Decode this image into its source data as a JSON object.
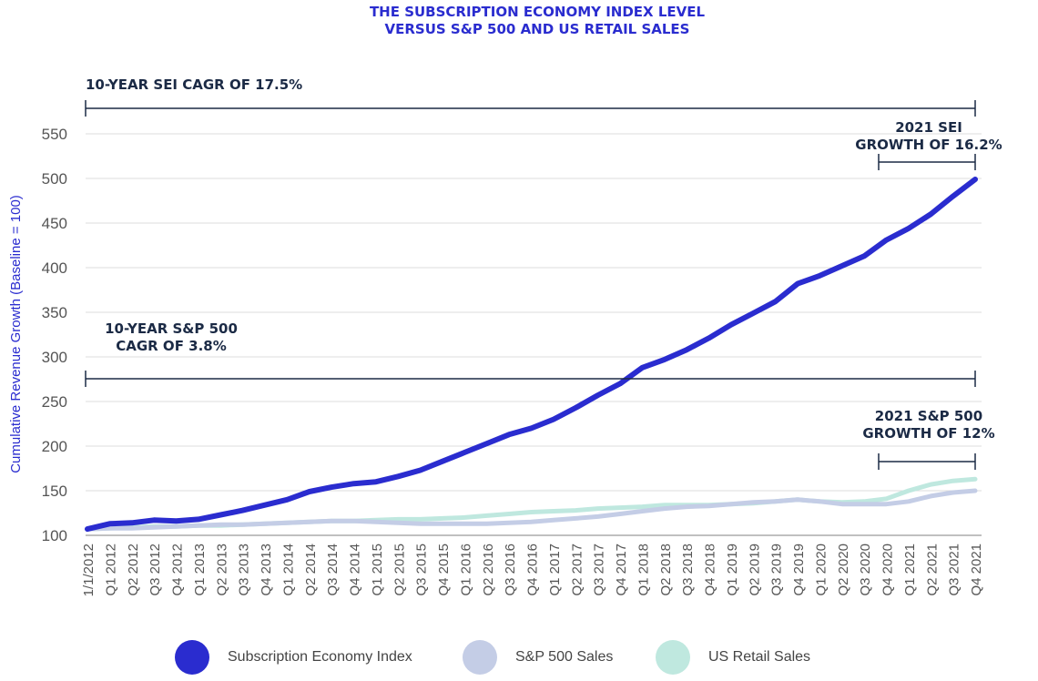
{
  "chart_data": {
    "type": "line",
    "title": "THE SUBSCRIPTION ECONOMY INDEX LEVEL",
    "subtitle": "VERSUS S&P 500 AND US RETAIL SALES",
    "xlabel": "",
    "ylabel": "Cumulative Revenue Growth (Baseline = 100)",
    "ylim": [
      100,
      550
    ],
    "yticks": [
      100,
      150,
      200,
      250,
      300,
      350,
      400,
      450,
      500,
      550
    ],
    "grid": true,
    "legend_position": "bottom",
    "categories": [
      "1/1/2012",
      "Q1 2012",
      "Q2 2012",
      "Q3 2012",
      "Q4 2012",
      "Q1 2013",
      "Q2 2013",
      "Q3 2013",
      "Q4 2013",
      "Q1 2014",
      "Q2 2014",
      "Q3 2014",
      "Q4 2014",
      "Q1 2015",
      "Q2 2015",
      "Q3 2015",
      "Q4 2015",
      "Q1 2016",
      "Q2 2016",
      "Q3 2016",
      "Q4 2016",
      "Q1 2017",
      "Q2 2017",
      "Q3 2017",
      "Q4 2017",
      "Q1 2018",
      "Q2 2018",
      "Q3 2018",
      "Q4 2018",
      "Q1 2019",
      "Q2 2019",
      "Q3 2019",
      "Q4 2019",
      "Q1 2020",
      "Q2 2020",
      "Q3 2020",
      "Q4 2020",
      "Q1 2021",
      "Q2 2021",
      "Q3 2021",
      "Q4 2021"
    ],
    "series": [
      {
        "name": "Subscription Economy Index",
        "color": "#2a2ccf",
        "values": [
          107,
          113,
          114,
          117,
          116,
          118,
          123,
          128,
          134,
          140,
          149,
          154,
          158,
          160,
          166,
          173,
          183,
          193,
          203,
          213,
          220,
          230,
          243,
          257,
          270,
          288,
          297,
          308,
          321,
          336,
          349,
          362,
          382,
          391,
          402,
          413,
          431,
          444,
          460,
          480,
          499
        ]
      },
      {
        "name": "S&P 500 Sales",
        "color": "#c4cde6",
        "values": [
          107,
          108,
          108,
          109,
          110,
          111,
          112,
          112,
          113,
          114,
          115,
          116,
          116,
          115,
          114,
          113,
          113,
          113,
          113,
          114,
          115,
          117,
          119,
          121,
          124,
          127,
          130,
          132,
          133,
          135,
          137,
          138,
          140,
          138,
          135,
          135,
          135,
          138,
          144,
          148,
          150
        ]
      },
      {
        "name": "US Retail Sales",
        "color": "#bfe8df",
        "values": [
          107,
          108,
          109,
          110,
          110,
          111,
          111,
          112,
          113,
          114,
          115,
          116,
          116,
          117,
          118,
          118,
          119,
          120,
          122,
          124,
          126,
          127,
          128,
          130,
          131,
          132,
          134,
          134,
          134,
          135,
          136,
          138,
          140,
          138,
          137,
          138,
          141,
          150,
          157,
          161,
          163
        ]
      }
    ],
    "annotations": [
      {
        "text": "10-YEAR SEI CAGR OF 17.5%"
      },
      {
        "text": "10-YEAR S&P 500 CAGR OF 3.8%",
        "lines": [
          "10-YEAR S&P 500",
          "CAGR OF 3.8%"
        ]
      },
      {
        "text": "2021 SEI GROWTH OF 16.2%",
        "lines": [
          "2021 SEI",
          "GROWTH OF 16.2%"
        ]
      },
      {
        "text": "2021 S&P 500 GROWTH OF 12%",
        "lines": [
          "2021 S&P 500",
          "GROWTH OF 12%"
        ]
      }
    ]
  }
}
